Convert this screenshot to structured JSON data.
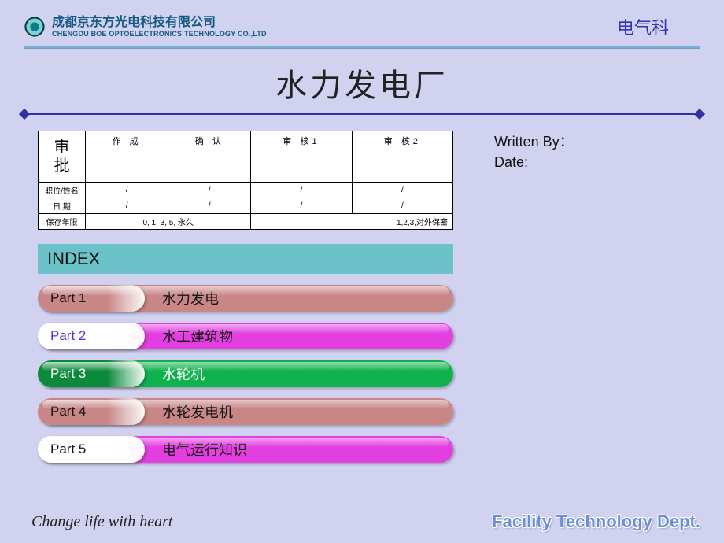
{
  "header": {
    "company_cn": "成都京东方光电科技有限公司",
    "company_en": "CHENGDU BOE OPTOELECTRONICS TECHNOLOGY CO.,LTD",
    "dept": "电气科",
    "logo_colors": {
      "outer": "#0d7e88",
      "inner": "#7cd0d6",
      "ring": "#063f47"
    }
  },
  "title": "水力发电厂",
  "meta": {
    "written_by_label": "Written By",
    "date_label": "Date"
  },
  "approval": {
    "big_label": "审\n批",
    "cols": [
      "作  成",
      "确  认",
      "审  核1",
      "审  核2"
    ],
    "rows": [
      {
        "label": "职位/姓名",
        "cells": [
          "/",
          "/",
          "/",
          "/"
        ]
      },
      {
        "label": "日  期",
        "cells": [
          "/",
          "/",
          "/",
          "/"
        ]
      }
    ],
    "footer_label": "保存年限",
    "footer_left": "0, 1, 3, 5, 永久",
    "footer_right": "1,2,3,对外保密"
  },
  "index_label": "INDEX",
  "parts": [
    {
      "n": "Part  1",
      "title": "水力发电",
      "badge_bg": "#c98686",
      "badge_color": "#111",
      "body_bg": "#c98686",
      "body_color": "#111"
    },
    {
      "n": "Part  2",
      "title": "水工建筑物",
      "badge_bg": "#ffffff",
      "badge_color": "#4b2fd6",
      "body_bg": "#e33fe0",
      "body_color": "#111"
    },
    {
      "n": "Part  3",
      "title": "水轮机",
      "badge_bg": "#0a8a3a",
      "badge_color": "#fff",
      "body_bg": "#0fb14d",
      "body_color": "#fff"
    },
    {
      "n": "Part  4",
      "title": "水轮发电机",
      "badge_bg": "#c98686",
      "badge_color": "#111",
      "body_bg": "#c98686",
      "body_color": "#111"
    },
    {
      "n": "Part  5",
      "title": "电气运行知识",
      "badge_bg": "#ffffff",
      "badge_color": "#111",
      "body_bg": "#e33fe0",
      "body_color": "#111"
    }
  ],
  "footer": {
    "left": "Change life with heart",
    "right": "Facility Technology Dept."
  },
  "colors": {
    "page_bg": "#d1d1f0",
    "rule": "#3030a0",
    "hr_top": "#7baed4",
    "index_bg": "#6bc3c9"
  }
}
